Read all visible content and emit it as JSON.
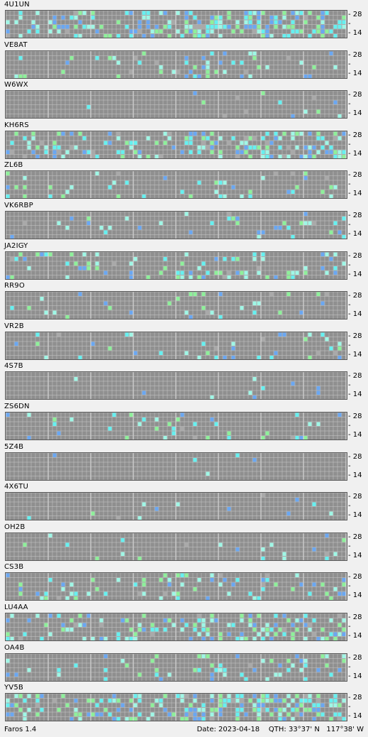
{
  "app": {
    "name": "Faros 1.4"
  },
  "status": {
    "date_label": "Date:",
    "date": "2023-04-18",
    "qth_label": "QTH:",
    "lat": "33°37' N",
    "lon": "117°38' W"
  },
  "scale_labels": {
    "top": "28",
    "middle": "-",
    "bottom": "14"
  },
  "colors": {
    "grid_bg": "#7c7c7c",
    "cell_empty": "#8f8f8f",
    "grid_line": "#c8c8c8",
    "cyan": "#66f0f0",
    "light_cyan": "#9ff7e6",
    "green": "#8ef09a",
    "blue": "#6aa7f2",
    "violet": "#8a7ae8",
    "gray_mark": "#a9a9a9"
  },
  "stations": [
    {
      "call": "4U1UN"
    },
    {
      "call": "VE8AT"
    },
    {
      "call": "W6WX"
    },
    {
      "call": "KH6RS"
    },
    {
      "call": "ZL6B"
    },
    {
      "call": "VK6RBP"
    },
    {
      "call": "JA2IGY"
    },
    {
      "call": "RR9O"
    },
    {
      "call": "VR2B"
    },
    {
      "call": "4S7B"
    },
    {
      "call": "ZS6DN"
    },
    {
      "call": "5Z4B"
    },
    {
      "call": "4X6TU"
    },
    {
      "call": "OH2B"
    },
    {
      "call": "CS3B"
    },
    {
      "call": "LU4AA"
    },
    {
      "call": "OA4B"
    },
    {
      "call": "YV5B"
    }
  ]
}
